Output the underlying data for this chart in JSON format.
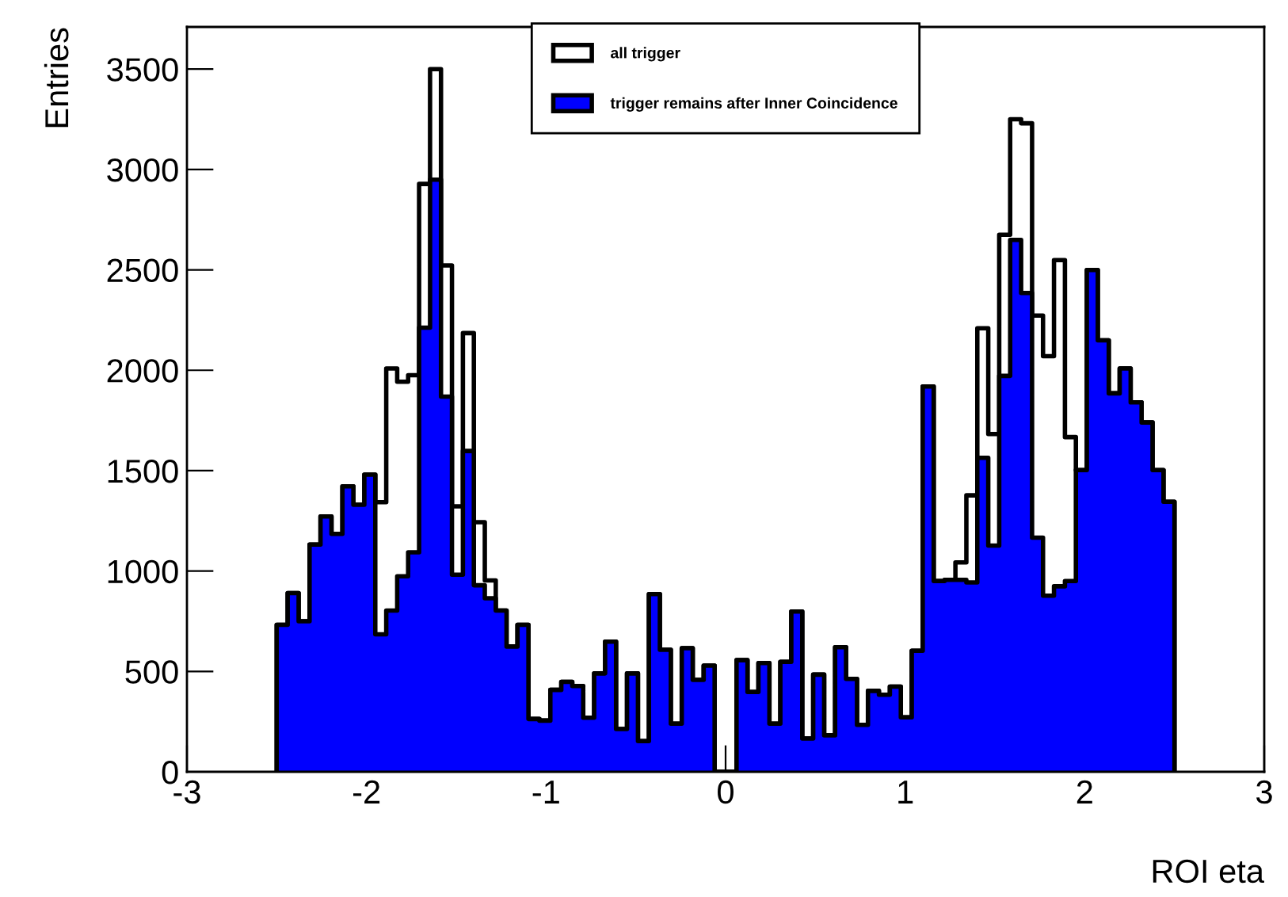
{
  "chart_data": {
    "type": "histogram",
    "xlabel": "ROI eta",
    "ylabel": "Entries",
    "bins": [
      -2.5,
      -2.439,
      -2.378,
      -2.317,
      -2.256,
      -2.195,
      -2.134,
      -2.073,
      -2.012,
      -1.951,
      -1.89,
      -1.829,
      -1.768,
      -1.707,
      -1.646,
      -1.585,
      -1.524,
      -1.463,
      -1.402,
      -1.341,
      -1.28,
      -1.22,
      -1.159,
      -1.098,
      -1.037,
      -0.976,
      -0.915,
      -0.854,
      -0.793,
      -0.732,
      -0.671,
      -0.61,
      -0.549,
      -0.488,
      -0.427,
      -0.366,
      -0.305,
      -0.244,
      -0.183,
      -0.122,
      -0.061,
      0,
      0.061,
      0.122,
      0.183,
      0.244,
      0.305,
      0.366,
      0.427,
      0.488,
      0.549,
      0.61,
      0.671,
      0.732,
      0.793,
      0.854,
      0.915,
      0.976,
      1.037,
      1.098,
      1.159,
      1.22,
      1.28,
      1.341,
      1.402,
      1.463,
      1.524,
      1.585,
      1.646,
      1.707,
      1.768,
      1.829,
      1.89,
      1.951,
      2.012,
      2.073,
      2.134,
      2.195,
      2.256,
      2.317,
      2.378,
      2.439,
      2.5
    ],
    "series": [
      {
        "name": "all trigger",
        "color": "#ffffff",
        "values": [
          732,
          890,
          750,
          1132,
          1272,
          1185,
          1422,
          1330,
          1480,
          1343,
          2009,
          1943,
          1975,
          2928,
          3500,
          2522,
          1322,
          2185,
          1243,
          953,
          803,
          624,
          732,
          263,
          255,
          408,
          448,
          427,
          269,
          490,
          648,
          213,
          490,
          153,
          885,
          608,
          240,
          616,
          458,
          529,
          0,
          0,
          556,
          398,
          542,
          240,
          548,
          798,
          166,
          484,
          182,
          621,
          463,
          234,
          403,
          384,
          424,
          271,
          603,
          1919,
          950,
          956,
          1043,
          1377,
          2209,
          1682,
          2675,
          3250,
          3230,
          2272,
          2070,
          2549,
          1667,
          1503,
          2499,
          2149,
          1885,
          2009,
          1840,
          1740,
          1503,
          1345
        ]
      },
      {
        "name": "trigger remains after Inner Coincidence",
        "color": "#0000ff",
        "values": [
          732,
          890,
          750,
          1132,
          1272,
          1185,
          1422,
          1330,
          1480,
          685,
          803,
          974,
          1093,
          2212,
          2949,
          1869,
          982,
          1598,
          929,
          864,
          803,
          624,
          732,
          263,
          255,
          408,
          448,
          427,
          269,
          490,
          648,
          213,
          490,
          153,
          885,
          608,
          240,
          616,
          458,
          529,
          0,
          0,
          556,
          398,
          542,
          240,
          548,
          798,
          166,
          484,
          182,
          621,
          463,
          234,
          403,
          384,
          424,
          271,
          603,
          1919,
          950,
          956,
          956,
          943,
          1564,
          1127,
          1972,
          2649,
          2385,
          1166,
          877,
          924,
          950,
          1503,
          2499,
          2149,
          1885,
          2009,
          1840,
          1740,
          1503,
          1345
        ]
      }
    ],
    "xlim": [
      -3,
      3
    ],
    "xticks": [
      -3,
      -2,
      -1,
      0,
      1,
      2,
      3
    ],
    "ylim": [
      0,
      3710
    ],
    "yticks": [
      0,
      500,
      1000,
      1500,
      2000,
      2500,
      3000,
      3500
    ],
    "legend": "top"
  }
}
